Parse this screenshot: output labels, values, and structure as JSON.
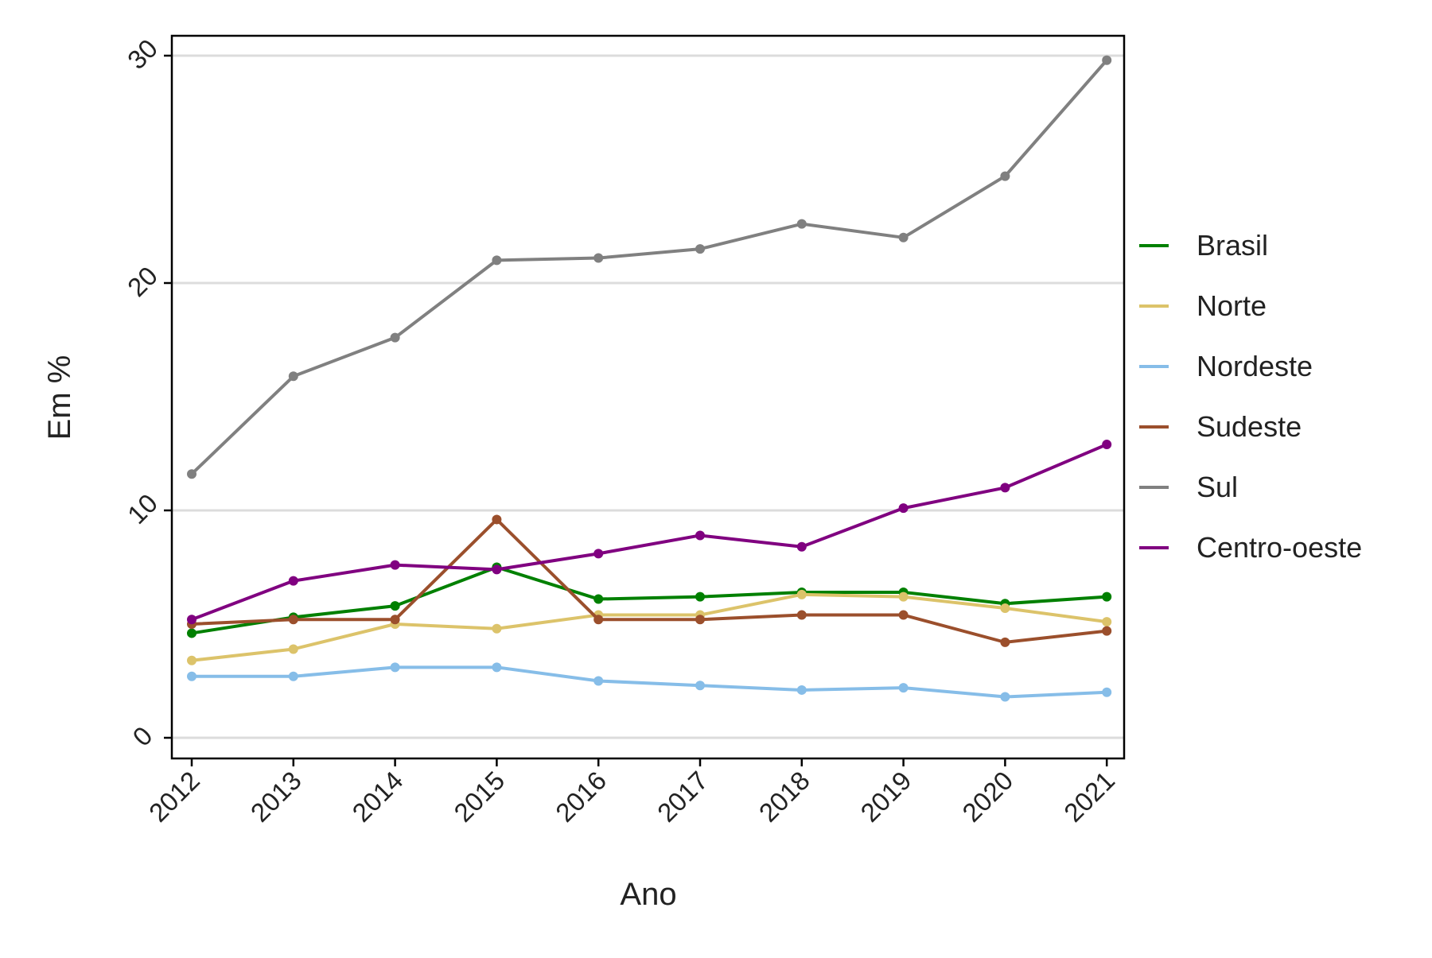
{
  "chart_data": {
    "type": "line",
    "title": "",
    "xlabel": "Ano",
    "ylabel": "Em %",
    "ylim": [
      0,
      30
    ],
    "yticks": [
      "0",
      "10",
      "20",
      "30"
    ],
    "grid": "horizontal",
    "legend_position": "right",
    "categories": [
      "2012",
      "2013",
      "2014",
      "2015",
      "2016",
      "2017",
      "2018",
      "2019",
      "2020",
      "2021"
    ],
    "series": [
      {
        "name": "Brasil",
        "color": "#008000",
        "values": [
          4.6,
          5.3,
          5.8,
          7.5,
          6.1,
          6.2,
          6.4,
          6.4,
          5.9,
          6.2
        ]
      },
      {
        "name": "Norte",
        "color": "#dcc36a",
        "values": [
          3.4,
          3.9,
          5.0,
          4.8,
          5.4,
          5.4,
          6.3,
          6.2,
          5.7,
          5.1
        ]
      },
      {
        "name": "Nordeste",
        "color": "#86bde8",
        "values": [
          2.7,
          2.7,
          3.1,
          3.1,
          2.5,
          2.3,
          2.1,
          2.2,
          1.8,
          2.0
        ]
      },
      {
        "name": "Sudeste",
        "color": "#9b4f2c",
        "values": [
          5.0,
          5.2,
          5.2,
          9.6,
          5.2,
          5.2,
          5.4,
          5.4,
          4.2,
          4.7
        ]
      },
      {
        "name": "Sul",
        "color": "#808080",
        "values": [
          11.6,
          15.9,
          17.6,
          21.0,
          21.1,
          21.5,
          22.6,
          22.0,
          24.7,
          29.8
        ]
      },
      {
        "name": "Centro-oeste",
        "color": "#800080",
        "values": [
          5.2,
          6.9,
          7.6,
          7.4,
          8.1,
          8.9,
          8.4,
          10.1,
          11.0,
          12.9
        ]
      }
    ]
  }
}
